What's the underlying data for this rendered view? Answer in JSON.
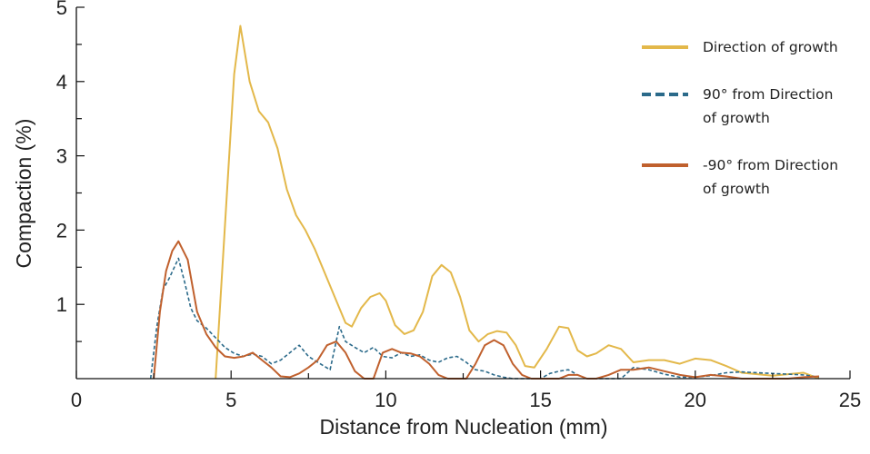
{
  "chart_data": {
    "type": "line",
    "xlabel": "Distance from Nucleation (mm)",
    "ylabel": "Compaction (%)",
    "xlim": [
      0,
      25
    ],
    "ylim": [
      0,
      5
    ],
    "xticks": [
      0,
      5,
      10,
      15,
      20,
      25
    ],
    "yticks": [
      1,
      2,
      3,
      4,
      5
    ],
    "grid": false,
    "legend_position": "top-right",
    "series": [
      {
        "name": "Direction of growth",
        "name_lines": [
          "Direction of growth"
        ],
        "color": "#e3b84a",
        "dash": "solid",
        "x": [
          4.5,
          5.1,
          5.3,
          5.6,
          5.9,
          6.2,
          6.5,
          6.8,
          7.1,
          7.4,
          7.7,
          8.0,
          8.4,
          8.7,
          8.9,
          9.2,
          9.5,
          9.8,
          10.0,
          10.3,
          10.6,
          10.9,
          11.2,
          11.5,
          11.8,
          12.1,
          12.4,
          12.7,
          13.0,
          13.3,
          13.6,
          13.9,
          14.2,
          14.5,
          14.8,
          15.2,
          15.6,
          15.9,
          16.2,
          16.5,
          16.8,
          17.2,
          17.6,
          18.0,
          18.5,
          19.0,
          19.5,
          20.0,
          20.5,
          21.0,
          21.5,
          22.0,
          22.5,
          23.0,
          23.5,
          24.0
        ],
        "values": [
          0.0,
          4.1,
          4.75,
          4.0,
          3.6,
          3.45,
          3.1,
          2.55,
          2.2,
          2.0,
          1.75,
          1.45,
          1.05,
          0.75,
          0.7,
          0.95,
          1.1,
          1.15,
          1.05,
          0.72,
          0.6,
          0.65,
          0.9,
          1.38,
          1.53,
          1.43,
          1.1,
          0.65,
          0.5,
          0.6,
          0.64,
          0.62,
          0.45,
          0.17,
          0.15,
          0.4,
          0.7,
          0.68,
          0.38,
          0.3,
          0.34,
          0.45,
          0.4,
          0.22,
          0.25,
          0.25,
          0.2,
          0.27,
          0.25,
          0.17,
          0.08,
          0.06,
          0.04,
          0.06,
          0.08,
          0.0
        ]
      },
      {
        "name": "90° from Direction of growth",
        "name_lines": [
          "90° from Direction",
          "of growth"
        ],
        "color": "#2b6a8a",
        "dash": "dashed",
        "x": [
          2.4,
          2.6,
          2.8,
          3.0,
          3.3,
          3.5,
          3.7,
          3.9,
          4.2,
          4.5,
          4.8,
          5.1,
          5.4,
          5.7,
          6.0,
          6.3,
          6.6,
          6.9,
          7.2,
          7.5,
          7.8,
          8.2,
          8.5,
          8.7,
          9.0,
          9.3,
          9.6,
          9.9,
          10.2,
          10.5,
          10.8,
          11.1,
          11.4,
          11.7,
          12.0,
          12.3,
          12.6,
          12.9,
          13.2,
          13.5,
          13.8,
          14.1,
          14.4,
          14.7,
          15.0,
          15.3,
          15.6,
          15.9,
          16.2,
          16.5,
          16.8,
          17.2,
          17.6,
          18.0,
          18.5,
          19.0,
          19.5,
          20.0,
          20.5,
          21.0,
          21.5,
          22.0,
          22.5,
          23.0,
          23.5,
          24.0
        ],
        "values": [
          0.0,
          0.7,
          1.2,
          1.35,
          1.62,
          1.3,
          0.95,
          0.78,
          0.68,
          0.55,
          0.42,
          0.34,
          0.3,
          0.33,
          0.3,
          0.2,
          0.25,
          0.35,
          0.45,
          0.3,
          0.22,
          0.12,
          0.7,
          0.5,
          0.42,
          0.35,
          0.42,
          0.3,
          0.28,
          0.35,
          0.3,
          0.32,
          0.25,
          0.22,
          0.28,
          0.3,
          0.22,
          0.12,
          0.1,
          0.05,
          0.02,
          0.0,
          0.0,
          0.0,
          0.0,
          0.07,
          0.1,
          0.12,
          0.05,
          0.0,
          0.0,
          0.0,
          0.0,
          0.15,
          0.12,
          0.06,
          0.02,
          0.02,
          0.04,
          0.08,
          0.09,
          0.08,
          0.07,
          0.06,
          0.05,
          0.02
        ]
      },
      {
        "name": "-90° from Direction of growth",
        "name_lines": [
          "-90° from Direction",
          "of growth"
        ],
        "color": "#c0602d",
        "dash": "solid",
        "x": [
          2.5,
          2.7,
          2.9,
          3.1,
          3.3,
          3.6,
          3.9,
          4.2,
          4.5,
          4.8,
          5.1,
          5.4,
          5.7,
          6.0,
          6.3,
          6.6,
          6.9,
          7.2,
          7.5,
          7.8,
          8.1,
          8.4,
          8.7,
          9.0,
          9.3,
          9.6,
          9.9,
          10.2,
          10.5,
          10.8,
          11.1,
          11.4,
          11.7,
          12.0,
          12.3,
          12.6,
          12.9,
          13.2,
          13.5,
          13.8,
          14.1,
          14.4,
          14.7,
          15.0,
          15.3,
          15.6,
          15.9,
          16.2,
          16.5,
          16.8,
          17.2,
          17.6,
          18.0,
          18.5,
          19.0,
          19.5,
          20.0,
          20.5,
          21.0,
          21.5,
          22.0,
          22.5,
          23.0,
          23.5,
          24.0
        ],
        "values": [
          0.0,
          0.9,
          1.45,
          1.72,
          1.85,
          1.6,
          0.9,
          0.6,
          0.42,
          0.3,
          0.28,
          0.3,
          0.35,
          0.25,
          0.15,
          0.03,
          0.02,
          0.07,
          0.15,
          0.25,
          0.45,
          0.5,
          0.35,
          0.1,
          0.0,
          0.0,
          0.35,
          0.4,
          0.35,
          0.34,
          0.3,
          0.2,
          0.05,
          0.0,
          0.0,
          0.0,
          0.2,
          0.45,
          0.52,
          0.45,
          0.2,
          0.05,
          0.0,
          0.0,
          0.0,
          0.0,
          0.05,
          0.05,
          0.0,
          0.0,
          0.05,
          0.12,
          0.12,
          0.15,
          0.1,
          0.05,
          0.02,
          0.05,
          0.03,
          0.0,
          0.0,
          0.0,
          0.0,
          0.02,
          0.03
        ]
      }
    ]
  }
}
